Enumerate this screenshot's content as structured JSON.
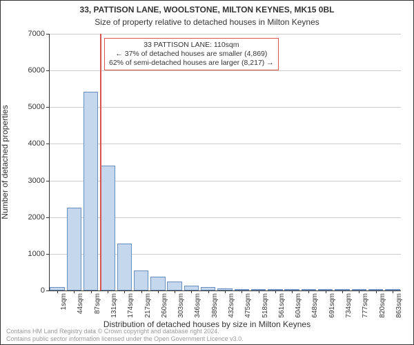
{
  "title_main": "33, PATTISON LANE, WOOLSTONE, MILTON KEYNES, MK15 0BL",
  "title_sub": "Size of property relative to detached houses in Milton Keynes",
  "title_main_fontsize": 12,
  "title_sub_fontsize": 12,
  "xlabel": "Distribution of detached houses by size in Milton Keynes",
  "ylabel": "Number of detached properties",
  "axis_label_fontsize": 12,
  "background_color": "#ffffff",
  "grid_color": "#cccccc",
  "bar_fill": "#c5d7ed",
  "bar_stroke": "#6a8fbf",
  "reference_line_color": "#d9534f",
  "annotation_border": "#d9534f",
  "ylim": [
    0,
    7000
  ],
  "ytick_step": 1000,
  "x_categories": [
    "1sqm",
    "44sqm",
    "87sqm",
    "131sqm",
    "174sqm",
    "217sqm",
    "260sqm",
    "303sqm",
    "346sqm",
    "389sqm",
    "432sqm",
    "475sqm",
    "518sqm",
    "561sqm",
    "604sqm",
    "648sqm",
    "691sqm",
    "734sqm",
    "777sqm",
    "820sqm",
    "863sqm"
  ],
  "values": [
    100,
    2250,
    5420,
    3400,
    1280,
    550,
    380,
    250,
    130,
    90,
    60,
    40,
    30,
    20,
    15,
    10,
    8,
    6,
    4,
    3,
    2
  ],
  "reference_value_sqm": 110,
  "annotation_lines": [
    "33 PATTISON LANE: 110sqm",
    "← 37% of detached houses are smaller (4,869)",
    "62% of semi-detached houses are larger (8,217) →"
  ],
  "footer_lines": [
    "Contains HM Land Registry data © Crown copyright and database right 2024.",
    "Contains public sector information licensed under the Open Government Licence v3.0."
  ]
}
